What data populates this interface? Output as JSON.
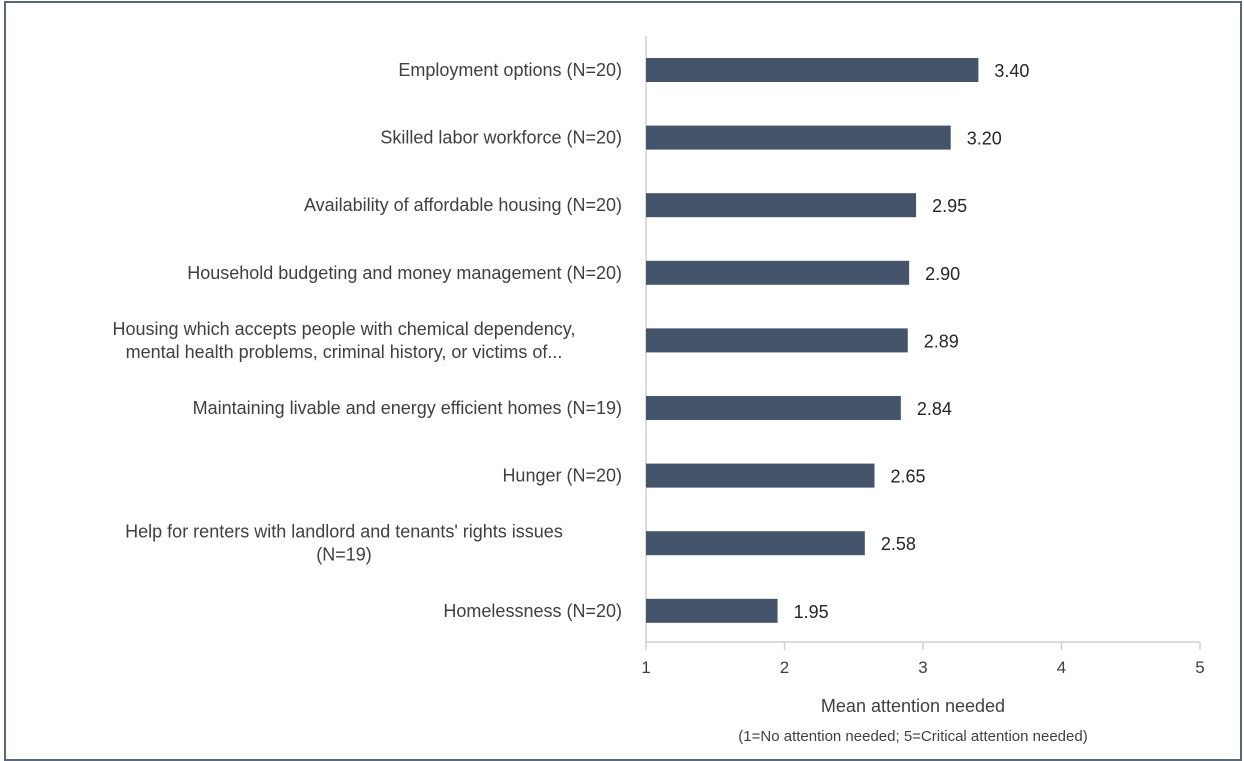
{
  "chart_data": {
    "type": "bar",
    "orientation": "horizontal",
    "categories": [
      [
        "Employment options (N=20)"
      ],
      [
        "Skilled labor workforce (N=20)"
      ],
      [
        "Availability of affordable housing (N=20)"
      ],
      [
        "Household budgeting and money management (N=20)"
      ],
      [
        "Housing which accepts people with chemical dependency,",
        "mental health problems, criminal history, or victims of..."
      ],
      [
        "Maintaining livable and energy efficient homes (N=19)"
      ],
      [
        "Hunger (N=20)"
      ],
      [
        "Help for renters with landlord and tenants' rights issues",
        "(N=19)"
      ],
      [
        "Homelessness (N=20)"
      ]
    ],
    "values": [
      3.4,
      3.2,
      2.95,
      2.9,
      2.89,
      2.84,
      2.65,
      2.58,
      1.95
    ],
    "value_labels": [
      "3.40",
      "3.20",
      "2.95",
      "2.90",
      "2.89",
      "2.84",
      "2.65",
      "2.58",
      "1.95"
    ],
    "xlim": [
      1,
      5
    ],
    "xticks": [
      "1",
      "2",
      "3",
      "4",
      "5"
    ],
    "xlabel": "Mean attention needed",
    "xlabel_note": "(1=No attention needed; 5=Critical attention needed)",
    "bar_color": "#44546a",
    "grid": false
  }
}
